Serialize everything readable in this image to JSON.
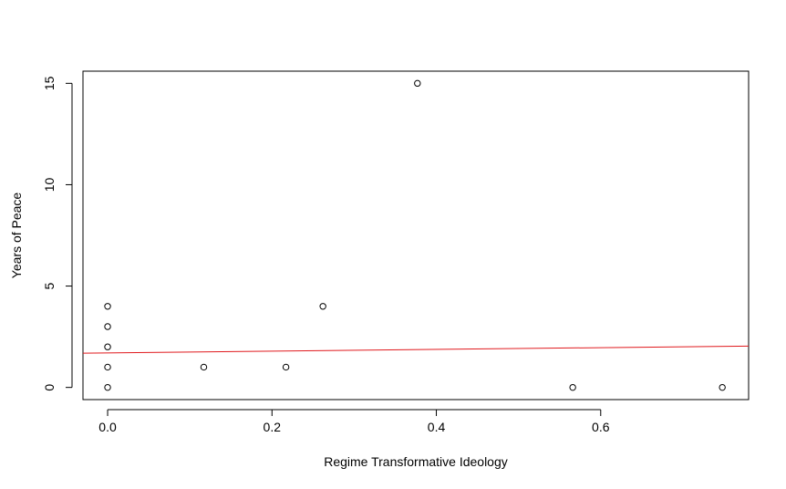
{
  "chart_data": {
    "type": "scatter",
    "title": "",
    "xlabel": "Regime Transformative Ideology",
    "ylabel": "Years of Peace",
    "xlim": [
      -0.03,
      0.78
    ],
    "ylim": [
      -0.6,
      15.6
    ],
    "xticks": [
      0.0,
      0.2,
      0.4,
      0.6
    ],
    "xtick_labels": [
      "0.0",
      "0.2",
      "0.4",
      "0.6"
    ],
    "yticks": [
      0,
      5,
      10,
      15
    ],
    "ytick_labels": [
      "0",
      "5",
      "10",
      "15"
    ],
    "grid": false,
    "legend": "none",
    "points": [
      {
        "x": 0.0,
        "y": 4
      },
      {
        "x": 0.0,
        "y": 3
      },
      {
        "x": 0.0,
        "y": 2
      },
      {
        "x": 0.0,
        "y": 1
      },
      {
        "x": 0.0,
        "y": 0
      },
      {
        "x": 0.117,
        "y": 1
      },
      {
        "x": 0.217,
        "y": 1
      },
      {
        "x": 0.262,
        "y": 4
      },
      {
        "x": 0.377,
        "y": 15
      },
      {
        "x": 0.566,
        "y": 0
      },
      {
        "x": 0.748,
        "y": 0
      }
    ],
    "fit_line": {
      "x": [
        -0.03,
        0.78
      ],
      "y": [
        1.69,
        2.04
      ],
      "color": "#e0191d"
    },
    "point_color": "#000000"
  }
}
